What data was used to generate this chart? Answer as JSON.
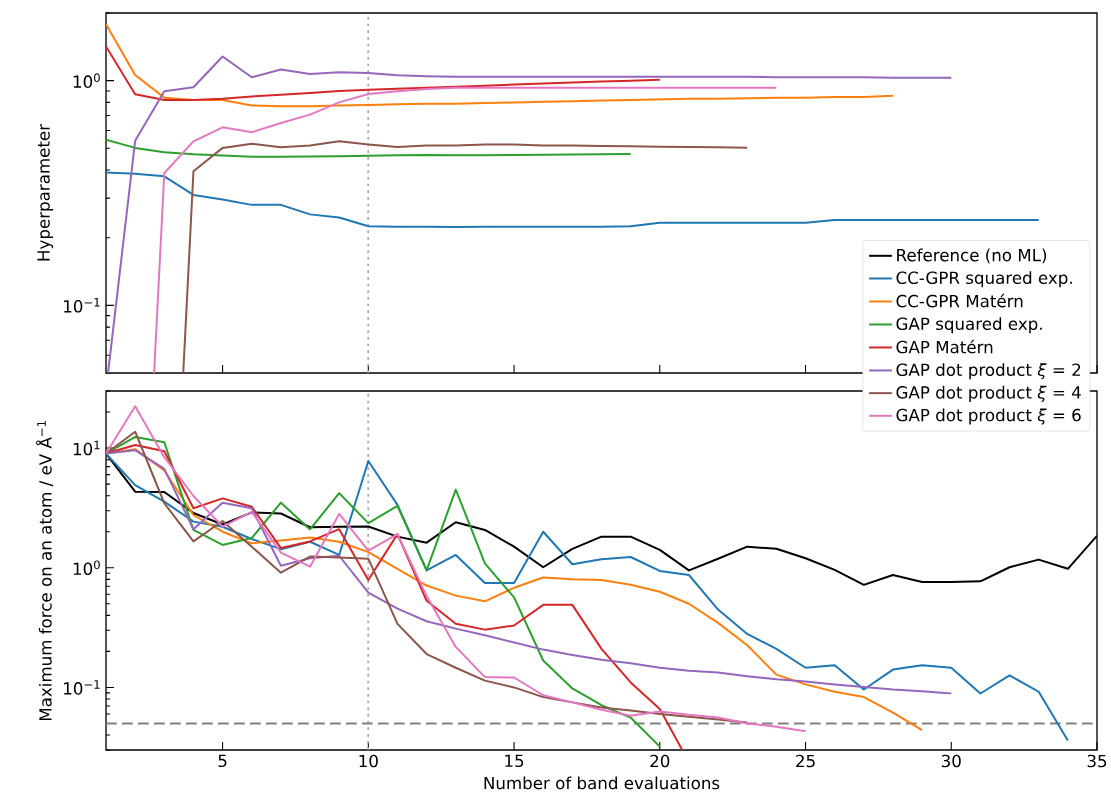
{
  "chart_data": [
    {
      "type": "line",
      "ylabel": "Hyperparameter",
      "log": true,
      "xlim": [
        1,
        35
      ],
      "ylim": [
        0.05,
        2
      ],
      "xticks": [
        5,
        10,
        15,
        20,
        25,
        30,
        35
      ],
      "yticks": [
        {
          "value": 0.1,
          "label": "10$^{−1}$"
        },
        {
          "value": 1,
          "label": "10$^{0}$"
        }
      ],
      "tick_labels": "y",
      "x": [
        1,
        2,
        3,
        4,
        5,
        6,
        7,
        8,
        9,
        10,
        11,
        12,
        13,
        14,
        15,
        16,
        17,
        18,
        19,
        20,
        21,
        22,
        23,
        24,
        25,
        26,
        27,
        28,
        29,
        30,
        31,
        32,
        33
      ],
      "ref_lines": [
        {
          "axis": "x",
          "value": 10,
          "color": "#aaaaaa",
          "line_style": "dotted"
        }
      ],
      "series": [
        {
          "color": "#1f77b4",
          "values": [
            0.39,
            0.385,
            0.375,
            0.31,
            0.296,
            0.28,
            0.28,
            0.254,
            0.246,
            0.225,
            0.224,
            0.224,
            0.223,
            0.224,
            0.224,
            0.224,
            0.224,
            0.224,
            0.225,
            0.233,
            0.233,
            0.233,
            0.233,
            0.233,
            0.233,
            0.24,
            0.24,
            0.24,
            0.24,
            0.24,
            0.24,
            0.24,
            0.24
          ]
        },
        {
          "color": "#ff7f0e",
          "values": [
            1.78,
            1.06,
            0.84,
            0.82,
            0.82,
            0.775,
            0.77,
            0.77,
            0.775,
            0.78,
            0.785,
            0.79,
            0.79,
            0.795,
            0.8,
            0.805,
            0.81,
            0.815,
            0.82,
            0.825,
            0.83,
            0.83,
            0.835,
            0.84,
            0.84,
            0.845,
            0.845,
            0.857,
            null,
            null,
            null,
            null,
            null
          ]
        },
        {
          "color": "#2ca02c",
          "values": [
            0.546,
            0.502,
            0.48,
            0.47,
            0.464,
            0.459,
            0.459,
            0.46,
            0.461,
            0.463,
            0.465,
            0.467,
            0.465,
            0.466,
            0.467,
            0.468,
            0.469,
            0.47,
            0.472,
            null,
            null,
            null,
            null,
            null,
            null,
            null,
            null,
            null,
            null,
            null,
            null,
            null,
            null
          ]
        },
        {
          "color": "#d62728",
          "values": [
            1.42,
            0.87,
            0.82,
            0.82,
            0.83,
            0.85,
            0.866,
            0.88,
            0.9,
            0.91,
            0.92,
            0.93,
            0.94,
            0.95,
            0.96,
            0.97,
            0.98,
            0.99,
            1.0,
            1.01,
            null,
            null,
            null,
            null,
            null,
            null,
            null,
            null,
            null,
            null,
            null,
            null,
            null
          ]
        },
        {
          "color": "#9467bd",
          "x": [
            1.07,
            2,
            3,
            4,
            5,
            6,
            7,
            8,
            9,
            10,
            11,
            12,
            13,
            14,
            15,
            16,
            17,
            18,
            19,
            20,
            21,
            22,
            23,
            24,
            25,
            26,
            27,
            28,
            29,
            30
          ],
          "values": [
            0.05,
            0.54,
            0.896,
            0.934,
            1.28,
            1.035,
            1.12,
            1.07,
            1.09,
            1.08,
            1.056,
            1.045,
            1.04,
            1.04,
            1.04,
            1.04,
            1.04,
            1.04,
            1.04,
            1.04,
            1.04,
            1.04,
            1.04,
            1.035,
            1.035,
            1.035,
            1.035,
            1.03,
            1.03,
            1.03
          ]
        },
        {
          "color": "#8c564b",
          "x": [
            3.65,
            4,
            5,
            6,
            7,
            8,
            9,
            10,
            11,
            12,
            13,
            14,
            15,
            16,
            17,
            18,
            19,
            20,
            21,
            22,
            23
          ],
          "values": [
            0.05,
            0.395,
            0.502,
            0.524,
            0.505,
            0.515,
            0.537,
            0.52,
            0.506,
            0.515,
            0.515,
            0.52,
            0.52,
            0.515,
            0.515,
            0.512,
            0.51,
            0.508,
            0.506,
            0.505,
            0.503
          ]
        },
        {
          "color": "#e377c2",
          "x": [
            2.65,
            3,
            4,
            5,
            6,
            7,
            8,
            9,
            10,
            11,
            12,
            13,
            14,
            15,
            16,
            17,
            18,
            19,
            20,
            21,
            22,
            23,
            24
          ],
          "values": [
            0.05,
            0.388,
            0.537,
            0.62,
            0.589,
            0.648,
            0.706,
            0.8,
            0.872,
            0.896,
            0.918,
            0.93,
            0.93,
            0.93,
            0.93,
            0.93,
            0.93,
            0.93,
            0.93,
            0.93,
            0.93,
            0.93,
            0.93
          ]
        }
      ]
    },
    {
      "type": "line",
      "xlabel": "Number of band evaluations",
      "ylabel": "Maximum force on an atom / eV Å$^{−1}$",
      "log": true,
      "legend": "top right",
      "xlim": [
        1,
        35
      ],
      "ylim": [
        0.03,
        30
      ],
      "xticks": [
        5,
        10,
        15,
        20,
        25,
        30,
        35
      ],
      "yticks": [
        {
          "value": 0.1,
          "label": "10$^{−1}$"
        },
        {
          "value": 1,
          "label": "10$^{0}$"
        },
        {
          "value": 10,
          "label": "10$^{1}$"
        }
      ],
      "x": [
        1,
        2,
        3,
        4,
        5,
        6,
        7,
        8,
        9,
        10,
        11,
        12,
        13,
        14,
        15,
        16,
        17,
        18,
        19,
        20,
        21,
        22,
        23,
        24,
        25,
        26,
        27,
        28,
        29,
        30,
        31,
        32,
        33,
        34,
        35
      ],
      "ref_lines": [
        {
          "axis": "x",
          "value": 10,
          "color": "#aaaaaa",
          "line_style": "dotted"
        },
        {
          "axis": "y",
          "value": 0.05,
          "color": "#808080",
          "line_style": "dashed"
        }
      ],
      "series": [
        {
          "name": "Reference (no ML)",
          "color": "#000000",
          "values": [
            9.0,
            4.32,
            4.3,
            2.87,
            2.3,
            2.9,
            2.84,
            2.18,
            2.2,
            2.21,
            1.82,
            1.62,
            2.4,
            2.07,
            1.5,
            1.01,
            1.44,
            1.82,
            1.82,
            1.41,
            0.95,
            1.19,
            1.5,
            1.44,
            1.2,
            0.96,
            0.72,
            0.87,
            0.76,
            0.76,
            0.77,
            1.01,
            1.17,
            0.98,
            1.85
          ]
        },
        {
          "name": "CC-GPR squared exp.",
          "color": "#1f77b4",
          "values": [
            9.0,
            4.9,
            3.57,
            2.43,
            2.2,
            1.74,
            1.43,
            1.65,
            1.28,
            7.8,
            3.35,
            0.95,
            1.28,
            0.745,
            0.745,
            2.0,
            1.07,
            1.18,
            1.23,
            0.94,
            0.87,
            0.447,
            0.28,
            0.21,
            0.146,
            0.153,
            0.096,
            0.141,
            0.153,
            0.146,
            0.089,
            0.126,
            0.092,
            0.036,
            null
          ]
        },
        {
          "name": "CC-GPR Matérn",
          "color": "#ff7f0e",
          "values": [
            9.0,
            9.8,
            6.5,
            2.76,
            2.0,
            1.6,
            1.69,
            1.79,
            1.65,
            1.35,
            0.98,
            0.71,
            0.585,
            0.524,
            0.68,
            0.83,
            0.8,
            0.79,
            0.72,
            0.63,
            0.5,
            0.346,
            0.225,
            0.128,
            0.106,
            0.092,
            0.083,
            0.0615,
            0.044,
            null,
            null,
            null,
            null,
            null,
            null
          ]
        },
        {
          "name": "GAP squared exp.",
          "color": "#2ca02c",
          "values": [
            9.0,
            12.4,
            11.2,
            2.07,
            1.55,
            1.77,
            3.5,
            2.09,
            4.2,
            2.36,
            3.29,
            0.95,
            4.5,
            1.09,
            0.565,
            0.168,
            0.098,
            0.071,
            0.056,
            0.032,
            null,
            null,
            null,
            null,
            null,
            null,
            null,
            null,
            null,
            null,
            null,
            null,
            null,
            null,
            null
          ]
        },
        {
          "name": "GAP Matérn",
          "color": "#d62728",
          "x": [
            1,
            2,
            3,
            4,
            5,
            6,
            7,
            8,
            9,
            10,
            11,
            12,
            13,
            14,
            15,
            16,
            17,
            18,
            19,
            20,
            20.77
          ],
          "values": [
            9.0,
            10.6,
            9.4,
            3.14,
            3.8,
            3.24,
            1.46,
            1.66,
            2.1,
            0.79,
            1.91,
            0.53,
            0.34,
            0.304,
            0.329,
            0.49,
            0.49,
            0.21,
            0.11,
            0.066,
            0.03
          ]
        },
        {
          "name": "GAP dot product *ξ* = 2",
          "color": "#9467bd",
          "values": [
            9.0,
            9.6,
            6.7,
            2.1,
            3.5,
            3.14,
            1.04,
            1.2,
            1.26,
            0.62,
            0.455,
            0.357,
            0.31,
            0.273,
            0.237,
            0.207,
            0.187,
            0.17,
            0.159,
            0.146,
            0.138,
            0.133,
            0.124,
            0.117,
            0.112,
            0.106,
            0.101,
            0.096,
            0.093,
            0.089,
            null,
            null,
            null,
            null,
            null
          ]
        },
        {
          "name": "GAP dot product *ξ* = 4",
          "color": "#8c564b",
          "values": [
            9.0,
            13.7,
            3.46,
            1.66,
            2.46,
            1.5,
            0.91,
            1.24,
            1.22,
            1.19,
            0.34,
            0.19,
            0.146,
            0.114,
            0.1,
            0.083,
            0.075,
            0.068,
            0.064,
            0.06,
            0.057,
            0.054,
            0.051,
            null,
            null,
            null,
            null,
            null,
            null,
            null,
            null,
            null,
            null,
            null,
            null
          ]
        },
        {
          "name": "GAP dot product *ξ* = 6",
          "color": "#e377c2",
          "values": [
            9.0,
            22.4,
            8.4,
            3.98,
            2.21,
            2.93,
            1.34,
            1.02,
            2.82,
            1.39,
            1.91,
            0.58,
            0.218,
            0.122,
            0.121,
            0.086,
            0.075,
            0.065,
            0.058,
            0.063,
            0.059,
            0.056,
            0.05,
            0.047,
            0.043,
            null,
            null,
            null,
            null,
            null,
            null,
            null,
            null,
            null,
            null
          ]
        }
      ]
    }
  ]
}
